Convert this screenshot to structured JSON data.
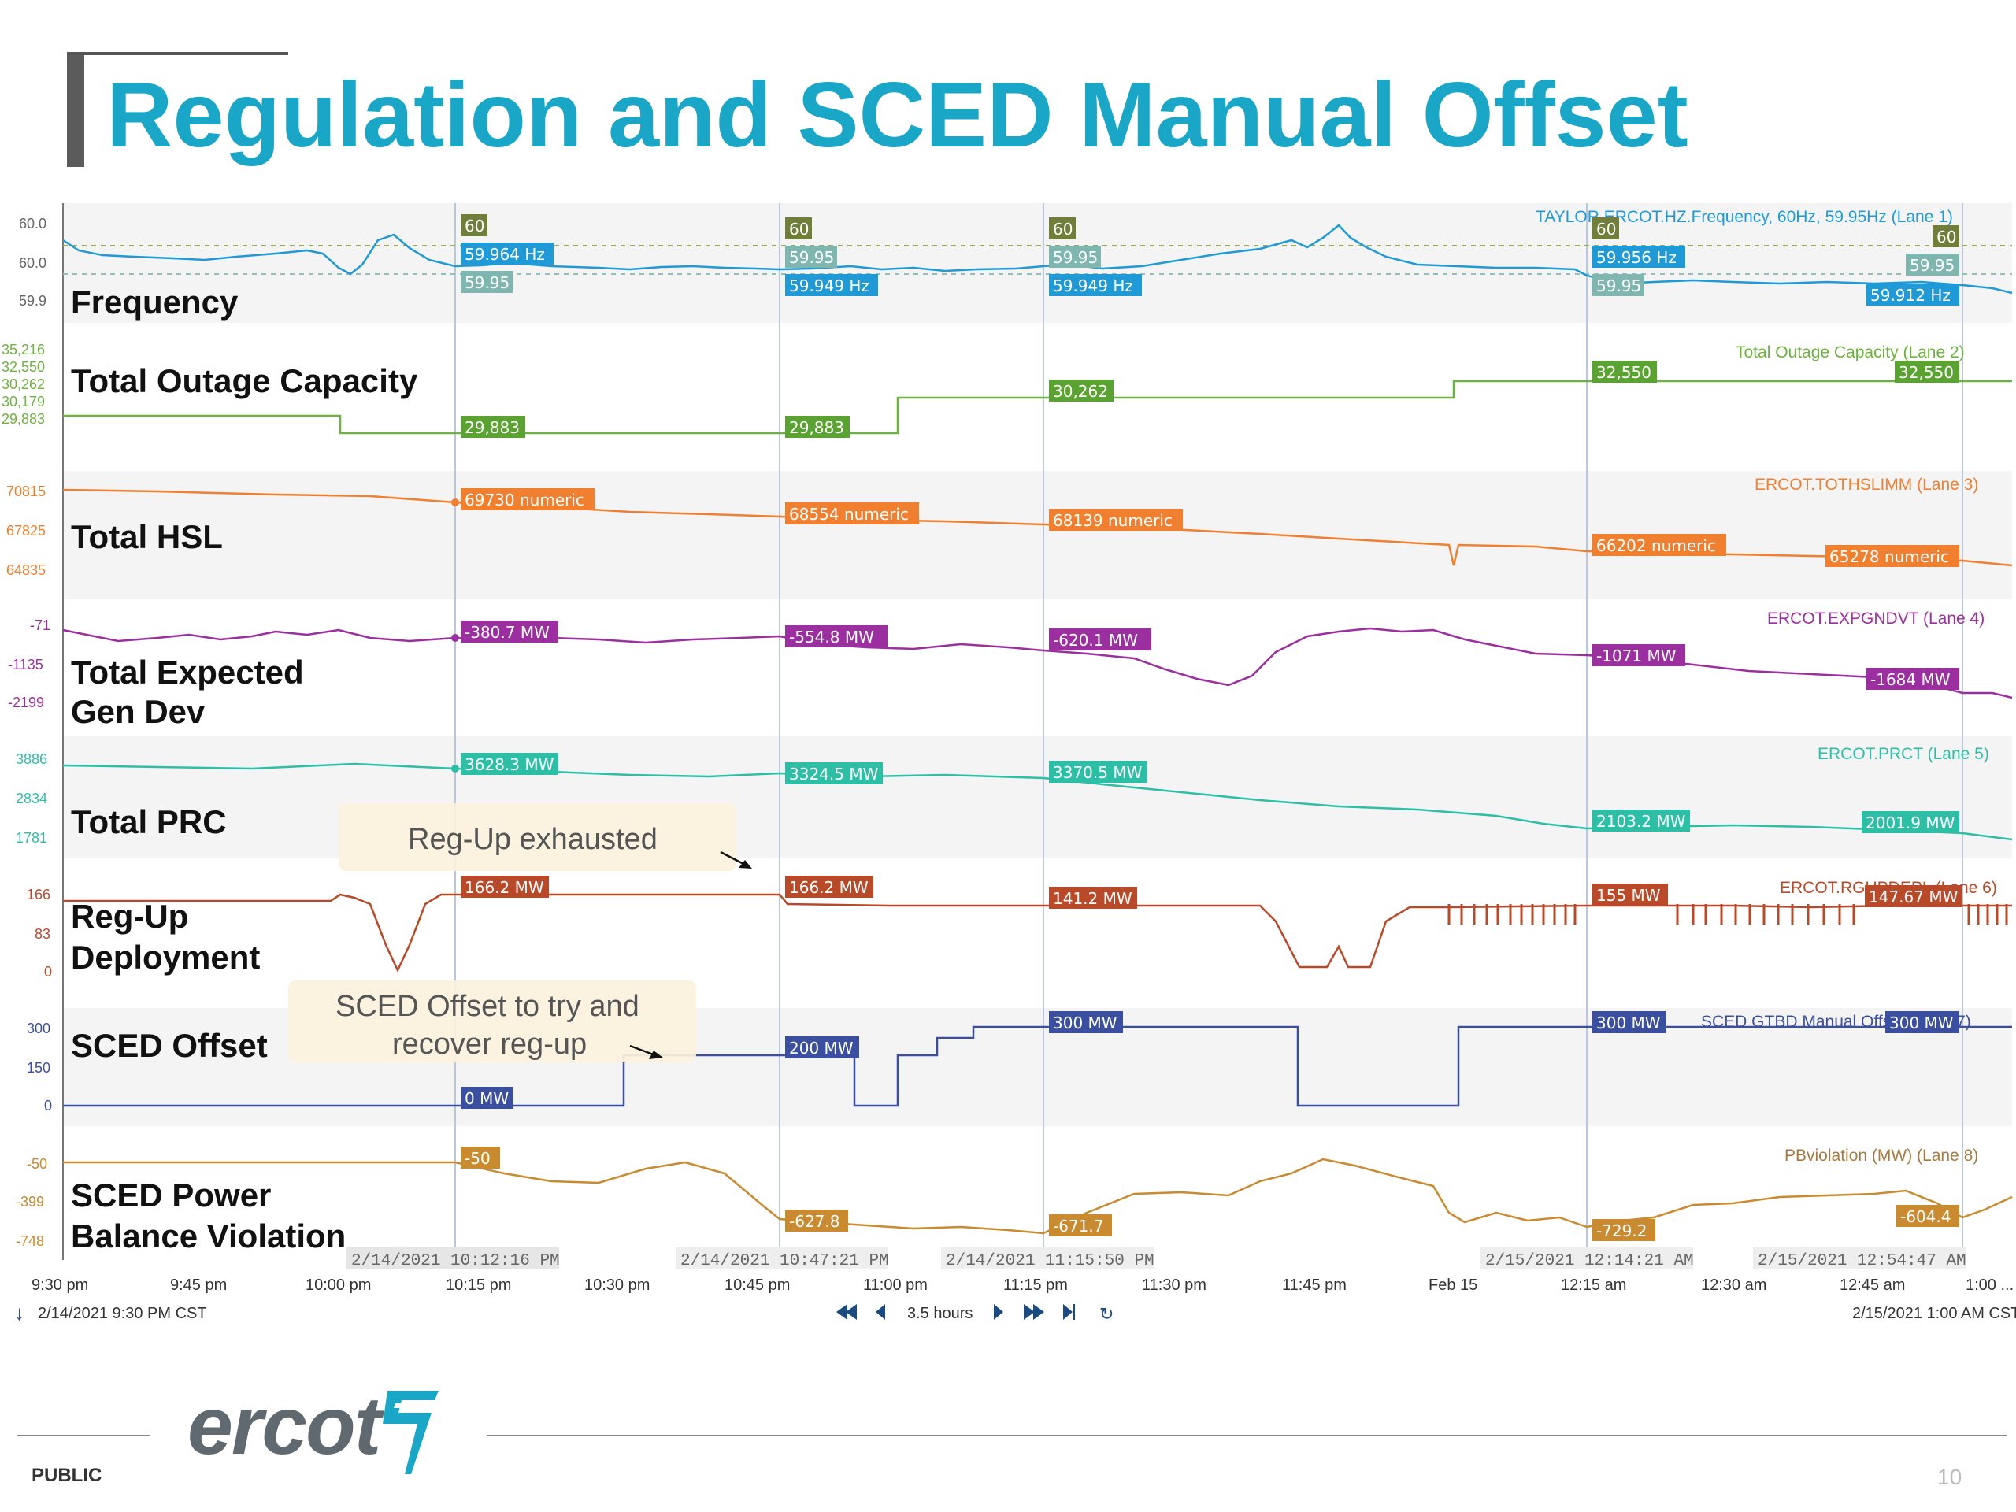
{
  "slide": {
    "title": "Regulation and SCED Manual Offset",
    "footer_label": "PUBLIC",
    "page_number": "10",
    "logo_text": "ercot"
  },
  "colors": {
    "title": "#1aa6c6",
    "frequency": "#1f9ad6",
    "outage": "#6db33f",
    "hsl": "#f07f2f",
    "gen_dev": "#9c2f9f",
    "prc": "#2dbfa6",
    "regup": "#b84a2a",
    "sced_offset": "#3b4fa0",
    "pbv": "#c98a30"
  },
  "chart_data": {
    "type": "line",
    "x_start": "2/14/2021 9:30 PM CST",
    "x_end": "2/15/2021 1:00 AM CST",
    "time_ticks": [
      "9:30 pm",
      "9:45 pm",
      "10:00 pm",
      "10:15 pm",
      "10:30 pm",
      "10:45 pm",
      "11:00 pm",
      "11:15 pm",
      "11:30 pm",
      "11:45 pm",
      "Feb 15",
      "12:15 am",
      "12:30 am",
      "12:45 am",
      "1:00 ..."
    ],
    "cursors": [
      "2/14/2021 10:12:16 PM",
      "2/14/2021 10:47:21 PM",
      "2/14/2021 11:15:50 PM",
      "2/15/2021 12:14:21 AM",
      "2/15/2021 12:54:47 AM"
    ],
    "range_label": "3.5 hours",
    "lanes": [
      {
        "title": "Frequency",
        "legend": "TAYLOR.ERCOT.HZ.Frequency, 60Hz, 59.95Hz (Lane 1)",
        "y_ticks": [
          "60.0",
          "60.0",
          "59.9"
        ],
        "flags": [
          "60",
          "59.964 Hz",
          "59.95",
          "60",
          "59.95",
          "59.949 Hz",
          "60",
          "59.95",
          "59.949 Hz",
          "60",
          "59.956 Hz",
          "59.95",
          "60",
          "59.95",
          "59.912 Hz"
        ]
      },
      {
        "title": "Total Outage Capacity",
        "legend": "Total Outage Capacity (Lane 2)",
        "y_ticks": [
          "35,216",
          "32,550",
          "30,262",
          "30,179",
          "29,883"
        ],
        "flags": [
          "29,883",
          "29,883",
          "30,262",
          "32,550",
          "32,550"
        ],
        "values_mw": [
          29883,
          29883,
          30262,
          32550,
          32550
        ]
      },
      {
        "title": "Total HSL",
        "legend": "ERCOT.TOTHSLIMM (Lane 3)",
        "y_ticks": [
          "70815",
          "67825",
          "64835"
        ],
        "flags": [
          "69730 numeric",
          "68554 numeric",
          "68139 numeric",
          "66202 numeric",
          "65278 numeric"
        ],
        "values": [
          69730,
          68554,
          68139,
          66202,
          65278
        ]
      },
      {
        "title": "Total Expected",
        "title2": "Gen Dev",
        "legend": "ERCOT.EXPGNDVT (Lane 4)",
        "y_ticks": [
          "-71",
          "-1135",
          "-2199"
        ],
        "flags": [
          "-380.7 MW",
          "-554.8 MW",
          "-620.1 MW",
          "-1071 MW",
          "-1684 MW"
        ],
        "values_mw": [
          -380.7,
          -554.8,
          -620.1,
          -1071,
          -1684
        ]
      },
      {
        "title": "Total PRC",
        "legend": "ERCOT.PRCT (Lane 5)",
        "y_ticks": [
          "3886",
          "2834",
          "1781"
        ],
        "flags": [
          "3628.3 MW",
          "3324.5 MW",
          "3370.5 MW",
          "2103.2 MW",
          "2001.9 MW"
        ],
        "values_mw": [
          3628.3,
          3324.5,
          3370.5,
          2103.2,
          2001.9
        ]
      },
      {
        "title": "Reg-Up",
        "title2": "Deployment",
        "legend": "ERCOT.RGUPDEPL (Lane 6)",
        "y_ticks": [
          "166",
          "83",
          "0"
        ],
        "flags": [
          "166.2 MW",
          "166.2 MW",
          "141.2 MW",
          "155 MW",
          "147.67 MW"
        ],
        "values_mw": [
          166.2,
          166.2,
          141.2,
          155,
          147.67
        ]
      },
      {
        "title": "SCED Offset",
        "legend": "SCED GTBD Manual Offset (Lane 7)",
        "y_ticks": [
          "300",
          "150",
          "0"
        ],
        "flags": [
          "0 MW",
          "200 MW",
          "300 MW",
          "300 MW",
          "300 MW"
        ],
        "values_mw": [
          0,
          200,
          300,
          300,
          300
        ]
      },
      {
        "title": "SCED Power",
        "title2": "Balance Violation",
        "legend": "PBviolation (MW) (Lane 8)",
        "y_ticks": [
          "-50",
          "-399",
          "-748"
        ],
        "flags": [
          "-50",
          "-627.8",
          "-671.7",
          "-729.2",
          "-604.4"
        ],
        "values_mw": [
          -50,
          -627.8,
          -671.7,
          -729.2,
          -604.4
        ]
      }
    ],
    "annotations": [
      "Reg-Up exhausted",
      "SCED Offset to try and",
      "recover reg-up"
    ]
  }
}
